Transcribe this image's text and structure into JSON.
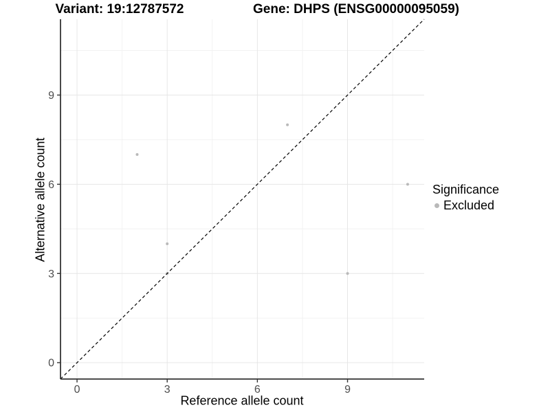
{
  "chart_data": {
    "type": "scatter",
    "title_left": "Variant: 19:12787572",
    "title_right": "Gene: DHPS (ENSG00000095059)",
    "xlabel": "Reference allele count",
    "ylabel": "Alternative allele count",
    "xlim": [
      -0.55,
      11.55
    ],
    "ylim": [
      -0.55,
      11.55
    ],
    "x_ticks": [
      0,
      3,
      6,
      9
    ],
    "y_ticks": [
      0,
      3,
      6,
      9
    ],
    "x_minor_ticks": [
      1.5,
      4.5,
      7.5,
      10.5
    ],
    "y_minor_ticks": [
      1.5,
      4.5,
      7.5,
      10.5
    ],
    "grid": "major and minor gridlines on, light gray, white panel",
    "identity_line": {
      "equation": "y = x",
      "style": "dashed",
      "color": "#000000"
    },
    "series": [
      {
        "name": "Excluded",
        "color": "#b9b9b9",
        "points": [
          {
            "x": 2,
            "y": 7
          },
          {
            "x": 3,
            "y": 3
          },
          {
            "x": 3,
            "y": 4
          },
          {
            "x": 7,
            "y": 8
          },
          {
            "x": 9,
            "y": 3
          },
          {
            "x": 11,
            "y": 6
          }
        ]
      }
    ],
    "legend": {
      "title": "Significance",
      "position": "right",
      "items": [
        {
          "label": "Excluded",
          "color": "#b9b9b9"
        }
      ]
    }
  },
  "style": {
    "background": "#ffffff",
    "axis_line_color": "#333333",
    "tick_label_color": "#4d4d4d",
    "title_text_color": "#000000",
    "grid_major_color": "#e6e6e6",
    "grid_minor_color": "#f2f2f2",
    "point_color": "#b9b9b9"
  }
}
